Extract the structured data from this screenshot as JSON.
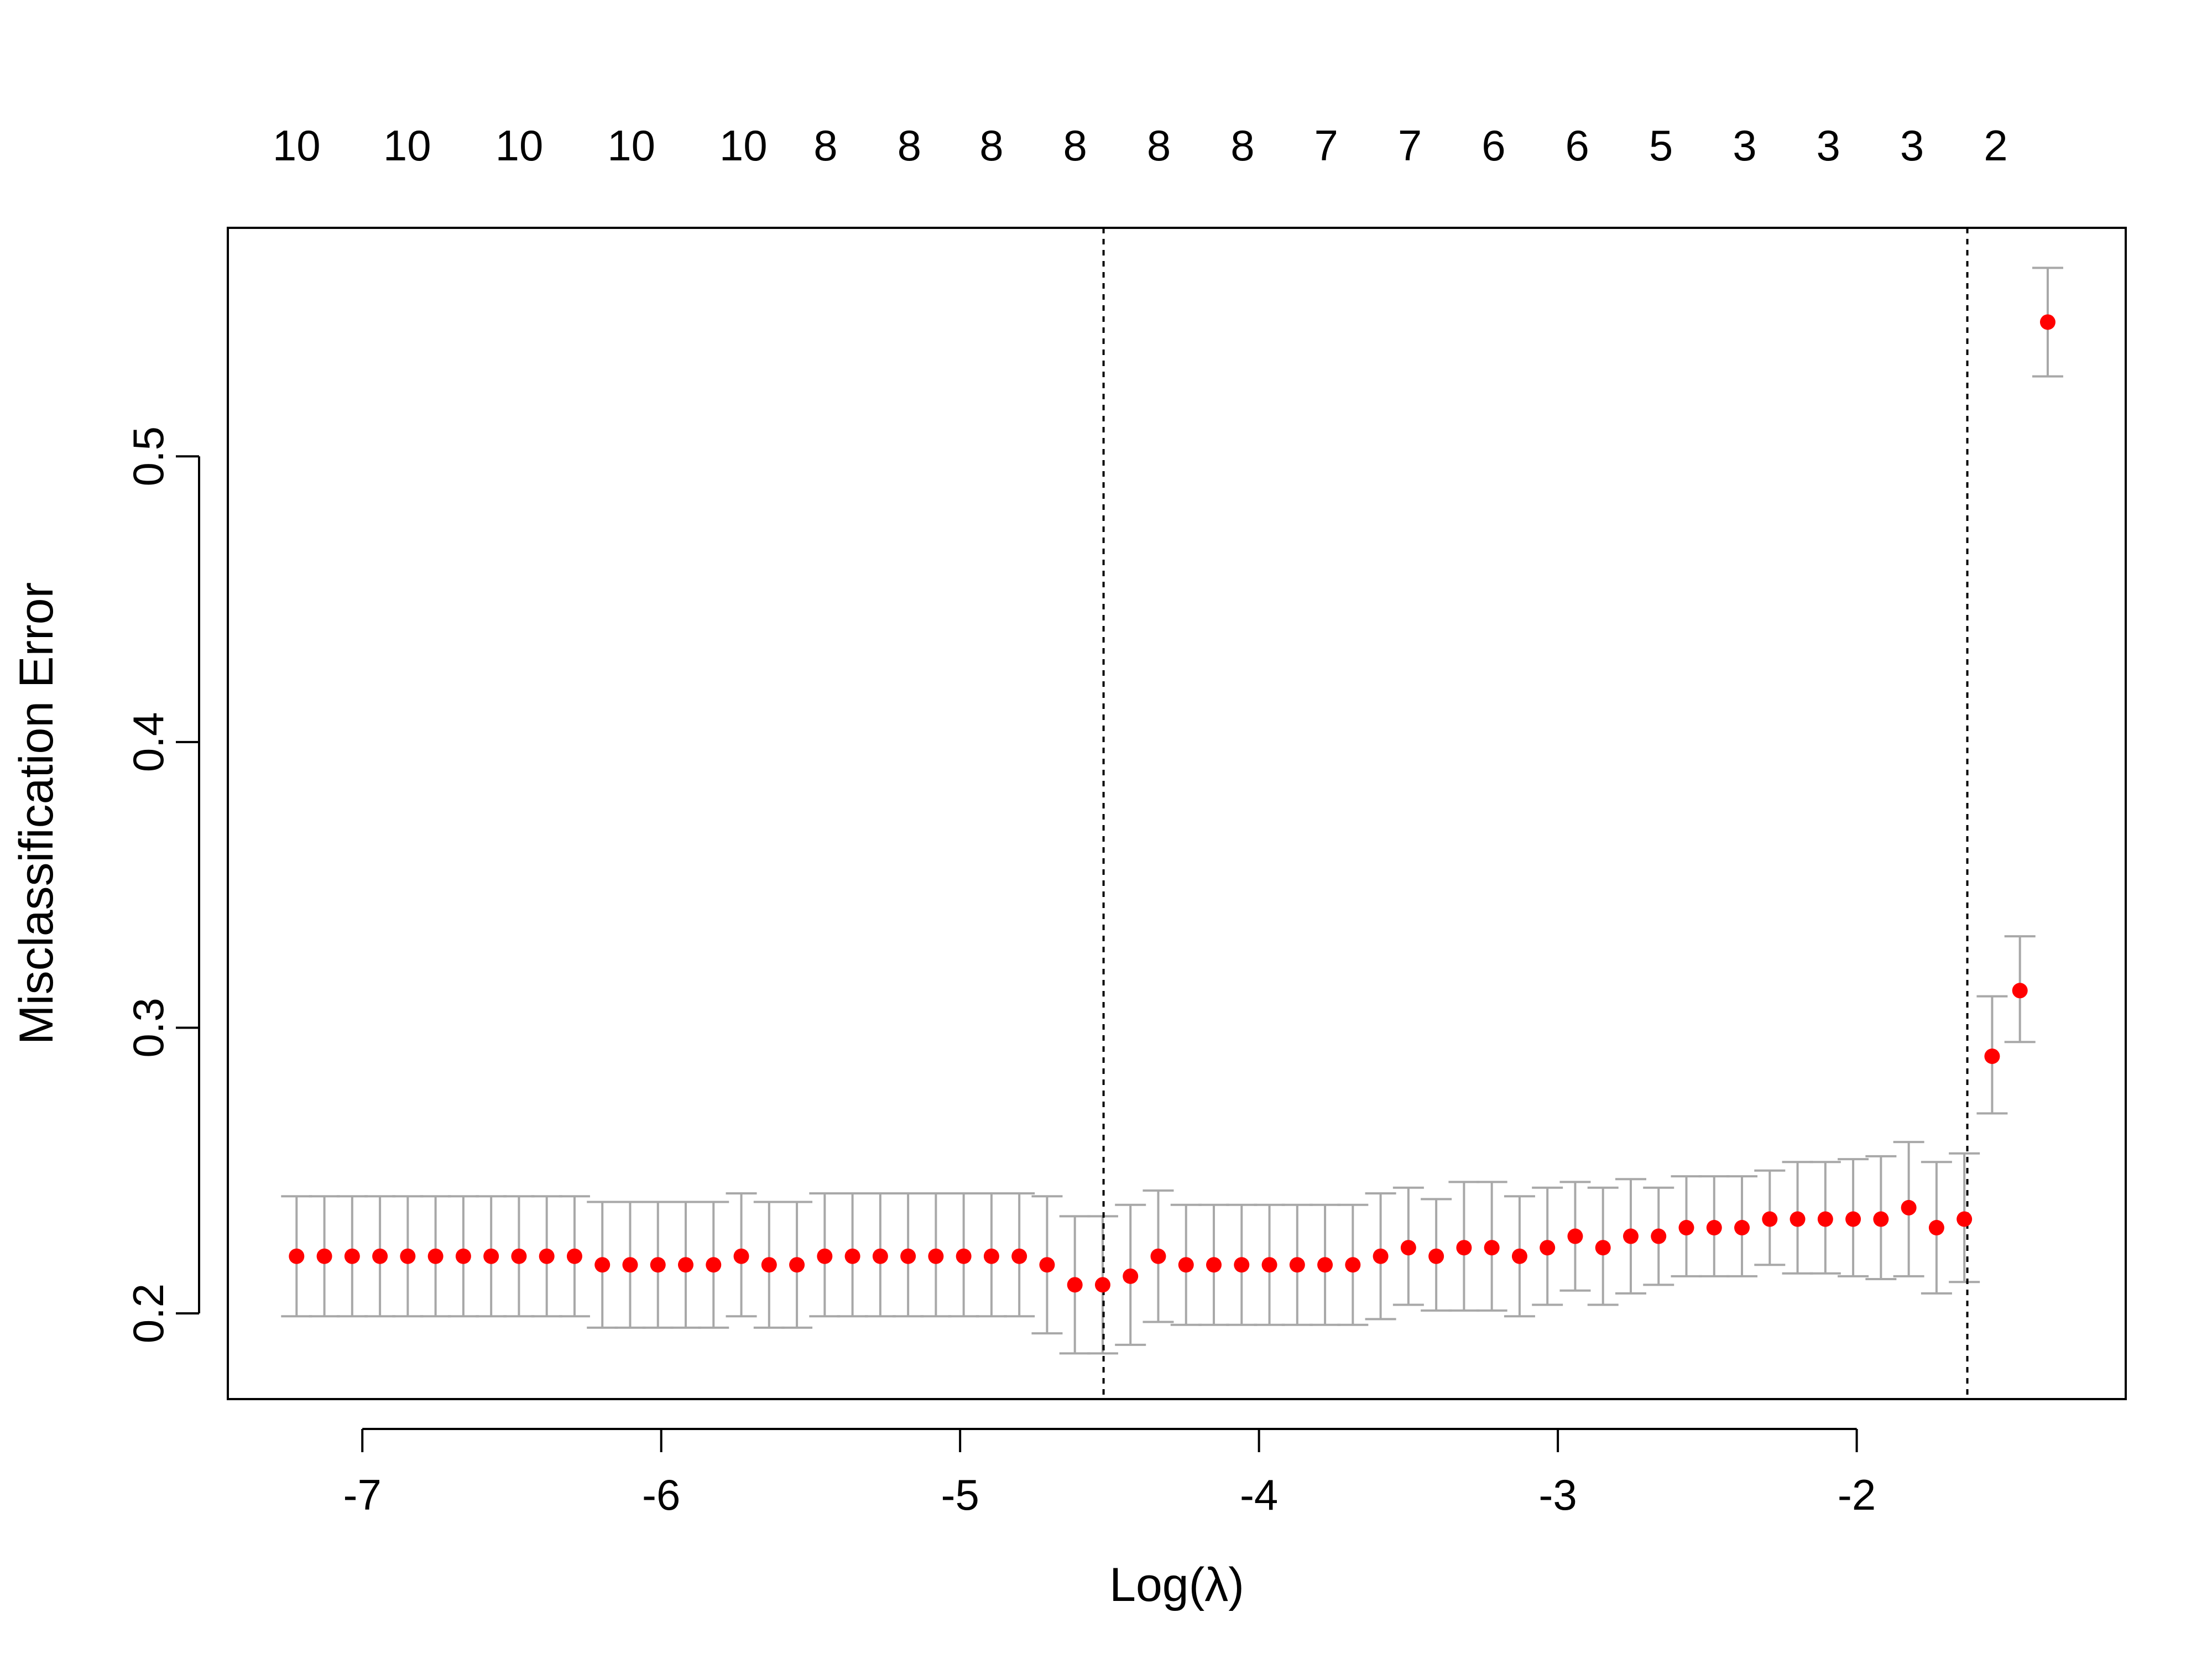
{
  "chart_data": {
    "type": "scatter",
    "title": "",
    "xlabel": "Log(λ)",
    "ylabel": "Misclassification Error",
    "xlim": [
      -7.45,
      -1.1
    ],
    "ylim": [
      0.17,
      0.58
    ],
    "x_ticks": [
      -7,
      -6,
      -5,
      -4,
      -3,
      -2
    ],
    "x_tick_labels": [
      "-7",
      "-6",
      "-5",
      "-4",
      "-3",
      "-2"
    ],
    "y_ticks": [
      0.2,
      0.3,
      0.4,
      0.5
    ],
    "y_tick_labels": [
      "0.2",
      "0.3",
      "0.4",
      "0.5"
    ],
    "top_axis": {
      "x": [
        -7.22,
        -6.85,
        -6.475,
        -6.1,
        -5.725,
        -5.45,
        -5.17,
        -4.895,
        -4.615,
        -4.335,
        -4.055,
        -3.775,
        -3.495,
        -3.215,
        -2.935,
        -2.655,
        -2.375,
        -2.095,
        -1.815,
        -1.535
      ],
      "labels": [
        "10",
        "10",
        "10",
        "10",
        "10",
        "8",
        "8",
        "8",
        "8",
        "8",
        "8",
        "7",
        "7",
        "6",
        "6",
        "5",
        "3",
        "3",
        "3",
        "2"
      ]
    },
    "vertical_lines": [
      -4.52,
      -1.63
    ],
    "grid": false,
    "point_color": "#ff0000",
    "errorbar_color": "#a8a8a8",
    "series": [
      {
        "x": [
          -7.22,
          -7.127,
          -7.034,
          -6.941,
          -6.848,
          -6.755,
          -6.662,
          -6.569,
          -6.476,
          -6.383,
          -6.29,
          -6.197,
          -6.104,
          -6.011,
          -5.918,
          -5.825,
          -5.732,
          -5.639,
          -5.546,
          -5.453,
          -5.36,
          -5.267,
          -5.174,
          -5.081,
          -4.988,
          -4.895,
          -4.802,
          -4.709,
          -4.616,
          -4.523,
          -4.43,
          -4.337,
          -4.244,
          -4.151,
          -4.058,
          -3.965,
          -3.872,
          -3.779,
          -3.686,
          -3.593,
          -3.5,
          -3.407,
          -3.314,
          -3.221,
          -3.128,
          -3.035,
          -2.942,
          -2.849,
          -2.756,
          -2.663,
          -2.57,
          -2.477,
          -2.384,
          -2.291,
          -2.198,
          -2.105,
          -2.012,
          -1.919,
          -1.826,
          -1.733,
          -1.64,
          -1.547,
          -1.454,
          -1.361
        ],
        "y": [
          0.22,
          0.22,
          0.22,
          0.22,
          0.22,
          0.22,
          0.22,
          0.22,
          0.22,
          0.22,
          0.22,
          0.217,
          0.217,
          0.217,
          0.217,
          0.217,
          0.22,
          0.217,
          0.217,
          0.22,
          0.22,
          0.22,
          0.22,
          0.22,
          0.22,
          0.22,
          0.22,
          0.217,
          0.21,
          0.21,
          0.213,
          0.22,
          0.217,
          0.217,
          0.217,
          0.217,
          0.217,
          0.217,
          0.217,
          0.22,
          0.223,
          0.22,
          0.223,
          0.223,
          0.22,
          0.223,
          0.227,
          0.223,
          0.227,
          0.227,
          0.23,
          0.23,
          0.23,
          0.233,
          0.233,
          0.233,
          0.233,
          0.233,
          0.237,
          0.23,
          0.233,
          0.29,
          0.313,
          0.547
        ],
        "lower": [
          0.199,
          0.199,
          0.199,
          0.199,
          0.199,
          0.199,
          0.199,
          0.199,
          0.199,
          0.199,
          0.199,
          0.195,
          0.195,
          0.195,
          0.195,
          0.195,
          0.199,
          0.195,
          0.195,
          0.199,
          0.199,
          0.199,
          0.199,
          0.199,
          0.199,
          0.199,
          0.199,
          0.193,
          0.186,
          0.186,
          0.189,
          0.197,
          0.196,
          0.196,
          0.196,
          0.196,
          0.196,
          0.196,
          0.196,
          0.198,
          0.203,
          0.201,
          0.201,
          0.201,
          0.199,
          0.203,
          0.208,
          0.203,
          0.207,
          0.21,
          0.213,
          0.213,
          0.213,
          0.217,
          0.214,
          0.214,
          0.213,
          0.212,
          0.213,
          0.207,
          0.211,
          0.27,
          0.295,
          0.528
        ],
        "upper": [
          0.241,
          0.241,
          0.241,
          0.241,
          0.241,
          0.241,
          0.241,
          0.241,
          0.241,
          0.241,
          0.241,
          0.239,
          0.239,
          0.239,
          0.239,
          0.239,
          0.242,
          0.239,
          0.239,
          0.242,
          0.242,
          0.242,
          0.242,
          0.242,
          0.242,
          0.242,
          0.242,
          0.241,
          0.234,
          0.234,
          0.238,
          0.243,
          0.238,
          0.238,
          0.238,
          0.238,
          0.238,
          0.238,
          0.238,
          0.242,
          0.244,
          0.24,
          0.246,
          0.246,
          0.241,
          0.244,
          0.246,
          0.244,
          0.247,
          0.244,
          0.248,
          0.248,
          0.248,
          0.25,
          0.253,
          0.253,
          0.254,
          0.255,
          0.26,
          0.253,
          0.256,
          0.311,
          0.332,
          0.566
        ]
      }
    ]
  }
}
